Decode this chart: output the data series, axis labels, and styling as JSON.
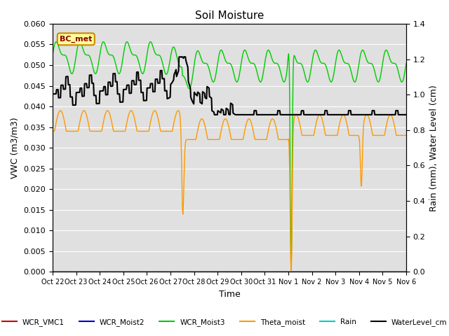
{
  "title": "Soil Moisture",
  "xlabel": "Time",
  "ylabel_left": "VWC (m3/m3)",
  "ylabel_right": "Rain (mm), Water Level (cm)",
  "ylim_left": [
    0.0,
    0.06
  ],
  "ylim_right": [
    0.0,
    1.4
  ],
  "bg_color": "#e0e0e0",
  "annotation_label": "BC_met",
  "xtick_labels": [
    "Oct 22",
    "Oct 23",
    "Oct 24",
    "Oct 25",
    "Oct 26",
    "Oct 27",
    "Oct 28",
    "Oct 29",
    "Oct 30",
    "Oct 31",
    "Nov 1",
    "Nov 2",
    "Nov 3",
    "Nov 4",
    "Nov 5",
    "Nov 6"
  ]
}
